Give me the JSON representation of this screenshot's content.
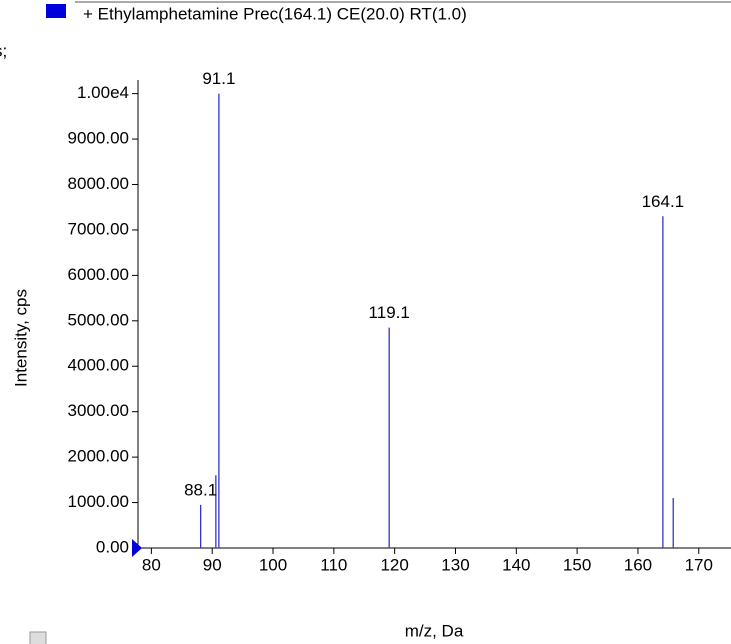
{
  "chart_data": {
    "type": "stick",
    "legend": "+ Ethylamphetamine Prec(164.1) CE(20.0) RT(1.0)",
    "fragment": "s;",
    "xlabel": "m/z, Da",
    "ylabel": "Intensity, cps",
    "x": [
      88.1,
      90.6,
      91.1,
      119.1,
      164.1,
      165.8
    ],
    "values": [
      950,
      1600,
      10000,
      4850,
      7300,
      1100
    ],
    "peak_labels": [
      88.1,
      91.1,
      119.1,
      164.1
    ],
    "peak_label_values": [
      950,
      10000,
      4850,
      7300
    ],
    "color": "#3333cc",
    "xlim": [
      77.8,
      175.3
    ],
    "xticks": [
      80,
      90,
      100,
      110,
      120,
      130,
      140,
      150,
      160,
      170
    ],
    "ylim": [
      0,
      10300
    ],
    "yticks": [
      {
        "value": 0,
        "label": "0.00"
      },
      {
        "value": 1000,
        "label": "1000.00"
      },
      {
        "value": 2000,
        "label": "2000.00"
      },
      {
        "value": 3000,
        "label": "3000.00"
      },
      {
        "value": 4000,
        "label": "4000.00"
      },
      {
        "value": 5000,
        "label": "5000.00"
      },
      {
        "value": 6000,
        "label": "6000.00"
      },
      {
        "value": 7000,
        "label": "7000.00"
      },
      {
        "value": 8000,
        "label": "8000.00"
      },
      {
        "value": 9000,
        "label": "9000.00"
      },
      {
        "value": 10000,
        "label": "1.00e4"
      }
    ]
  }
}
